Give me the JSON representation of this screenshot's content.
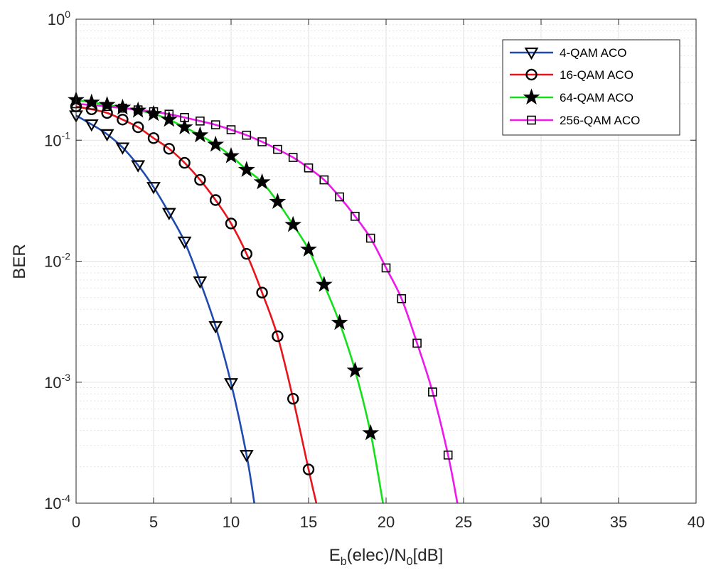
{
  "chart_data": {
    "type": "line",
    "title": "",
    "yscale": "log",
    "grid": true,
    "minor_grid": true,
    "legend_position": "top-right",
    "xlabel": {
      "main": "E",
      "sub_b": "b",
      "middle": "(elec)/N",
      "sub_0": "0",
      "tail": "[dB]"
    },
    "ylabel": "BER",
    "xlim": [
      0,
      40
    ],
    "ylim": [
      0.0001,
      1
    ],
    "xticks": [
      {
        "value": 0,
        "label": "0"
      },
      {
        "value": 5,
        "label": "5"
      },
      {
        "value": 10,
        "label": "10"
      },
      {
        "value": 15,
        "label": "15"
      },
      {
        "value": 20,
        "label": "20"
      },
      {
        "value": 25,
        "label": "25"
      },
      {
        "value": 30,
        "label": "30"
      },
      {
        "value": 35,
        "label": "35"
      },
      {
        "value": 40,
        "label": "40"
      }
    ],
    "yticks": [
      {
        "value": 1,
        "base": "10",
        "exp": "0"
      },
      {
        "value": 0.1,
        "base": "10",
        "exp": "-1"
      },
      {
        "value": 0.01,
        "base": "10",
        "exp": "-2"
      },
      {
        "value": 0.001,
        "base": "10",
        "exp": "-3"
      },
      {
        "value": 0.0001,
        "base": "10",
        "exp": "-4"
      }
    ],
    "series": [
      {
        "name": "4-QAM ACO",
        "color": "#1f4bb0",
        "marker": "triangle-down",
        "curve": [
          [
            0,
            0.16
          ],
          [
            1,
            0.135
          ],
          [
            2,
            0.112
          ],
          [
            3,
            0.087
          ],
          [
            4,
            0.062
          ],
          [
            5,
            0.041
          ],
          [
            6,
            0.025
          ],
          [
            7,
            0.0145
          ],
          [
            8,
            0.0068
          ],
          [
            9,
            0.0029
          ],
          [
            10,
            0.00098
          ],
          [
            11,
            0.00025
          ],
          [
            11.5,
            0.0001
          ]
        ],
        "markers": [
          [
            0,
            0.16
          ],
          [
            1,
            0.135
          ],
          [
            2,
            0.112
          ],
          [
            3,
            0.087
          ],
          [
            4,
            0.062
          ],
          [
            5,
            0.041
          ],
          [
            6,
            0.025
          ],
          [
            7,
            0.0145
          ],
          [
            8,
            0.0068
          ],
          [
            9,
            0.0029
          ],
          [
            10,
            0.00098
          ],
          [
            11,
            0.00025
          ]
        ]
      },
      {
        "name": "16-QAM ACO",
        "color": "#e8141b",
        "marker": "circle",
        "curve": [
          [
            0,
            0.19
          ],
          [
            1,
            0.18
          ],
          [
            2,
            0.168
          ],
          [
            3,
            0.148
          ],
          [
            4,
            0.128
          ],
          [
            5,
            0.104
          ],
          [
            6,
            0.085
          ],
          [
            7,
            0.065
          ],
          [
            8,
            0.047
          ],
          [
            9,
            0.032
          ],
          [
            10,
            0.0205
          ],
          [
            11,
            0.0115
          ],
          [
            12,
            0.0055
          ],
          [
            13,
            0.0024
          ],
          [
            14,
            0.00073
          ],
          [
            15,
            0.00019
          ],
          [
            15.5,
            0.0001
          ]
        ],
        "markers": [
          [
            0,
            0.19
          ],
          [
            1,
            0.18
          ],
          [
            2,
            0.168
          ],
          [
            3,
            0.148
          ],
          [
            4,
            0.128
          ],
          [
            5,
            0.104
          ],
          [
            6,
            0.085
          ],
          [
            7,
            0.065
          ],
          [
            8,
            0.047
          ],
          [
            9,
            0.032
          ],
          [
            10,
            0.0205
          ],
          [
            11,
            0.0115
          ],
          [
            12,
            0.0055
          ],
          [
            13,
            0.0024
          ],
          [
            14,
            0.00073
          ],
          [
            15,
            0.00019
          ]
        ]
      },
      {
        "name": "64-QAM ACO",
        "color": "#14e01a",
        "marker": "star",
        "curve": [
          [
            0,
            0.215
          ],
          [
            1,
            0.205
          ],
          [
            2,
            0.196
          ],
          [
            3,
            0.186
          ],
          [
            4,
            0.176
          ],
          [
            5,
            0.165
          ],
          [
            6,
            0.148
          ],
          [
            7,
            0.128
          ],
          [
            8,
            0.11
          ],
          [
            9,
            0.092
          ],
          [
            10,
            0.074
          ],
          [
            11,
            0.057
          ],
          [
            12,
            0.045
          ],
          [
            13,
            0.031
          ],
          [
            14,
            0.02
          ],
          [
            15,
            0.0125
          ],
          [
            16,
            0.0064
          ],
          [
            17,
            0.0031
          ],
          [
            18,
            0.00125
          ],
          [
            19,
            0.00038
          ],
          [
            19.8,
            0.0001
          ]
        ],
        "markers": [
          [
            0,
            0.215
          ],
          [
            1,
            0.205
          ],
          [
            2,
            0.196
          ],
          [
            3,
            0.186
          ],
          [
            4,
            0.176
          ],
          [
            5,
            0.165
          ],
          [
            6,
            0.148
          ],
          [
            7,
            0.128
          ],
          [
            8,
            0.11
          ],
          [
            9,
            0.092
          ],
          [
            10,
            0.074
          ],
          [
            11,
            0.057
          ],
          [
            12,
            0.045
          ],
          [
            13,
            0.031
          ],
          [
            14,
            0.02
          ],
          [
            15,
            0.0125
          ],
          [
            16,
            0.0064
          ],
          [
            17,
            0.0031
          ],
          [
            18,
            0.00125
          ],
          [
            19,
            0.00038
          ]
        ]
      },
      {
        "name": "256-QAM ACO",
        "color": "#ee18ee",
        "marker": "square",
        "curve": [
          [
            0,
            0.2
          ],
          [
            1,
            0.195
          ],
          [
            2,
            0.19
          ],
          [
            3,
            0.184
          ],
          [
            4,
            0.178
          ],
          [
            5,
            0.172
          ],
          [
            6,
            0.164
          ],
          [
            7,
            0.154
          ],
          [
            8,
            0.144
          ],
          [
            9,
            0.134
          ],
          [
            10,
            0.122
          ],
          [
            11,
            0.11
          ],
          [
            12,
            0.097
          ],
          [
            13,
            0.084
          ],
          [
            14,
            0.072
          ],
          [
            15,
            0.059
          ],
          [
            16,
            0.047
          ],
          [
            17,
            0.034
          ],
          [
            18,
            0.0235
          ],
          [
            19,
            0.0155
          ],
          [
            20,
            0.0088
          ],
          [
            21,
            0.0049
          ],
          [
            22,
            0.0021
          ],
          [
            23,
            0.00083
          ],
          [
            24,
            0.00025
          ],
          [
            24.6,
            0.0001
          ]
        ],
        "markers": [
          [
            0,
            0.2
          ],
          [
            1,
            0.195
          ],
          [
            2,
            0.19
          ],
          [
            3,
            0.184
          ],
          [
            4,
            0.178
          ],
          [
            5,
            0.172
          ],
          [
            6,
            0.164
          ],
          [
            7,
            0.154
          ],
          [
            8,
            0.144
          ],
          [
            9,
            0.134
          ],
          [
            10,
            0.122
          ],
          [
            11,
            0.11
          ],
          [
            12,
            0.097
          ],
          [
            13,
            0.084
          ],
          [
            14,
            0.072
          ],
          [
            15,
            0.059
          ],
          [
            16,
            0.047
          ],
          [
            17,
            0.034
          ],
          [
            18,
            0.0235
          ],
          [
            19,
            0.0155
          ],
          [
            20,
            0.0088
          ],
          [
            21,
            0.0049
          ],
          [
            22,
            0.0021
          ],
          [
            23,
            0.00083
          ],
          [
            24,
            0.00025
          ]
        ]
      }
    ]
  }
}
